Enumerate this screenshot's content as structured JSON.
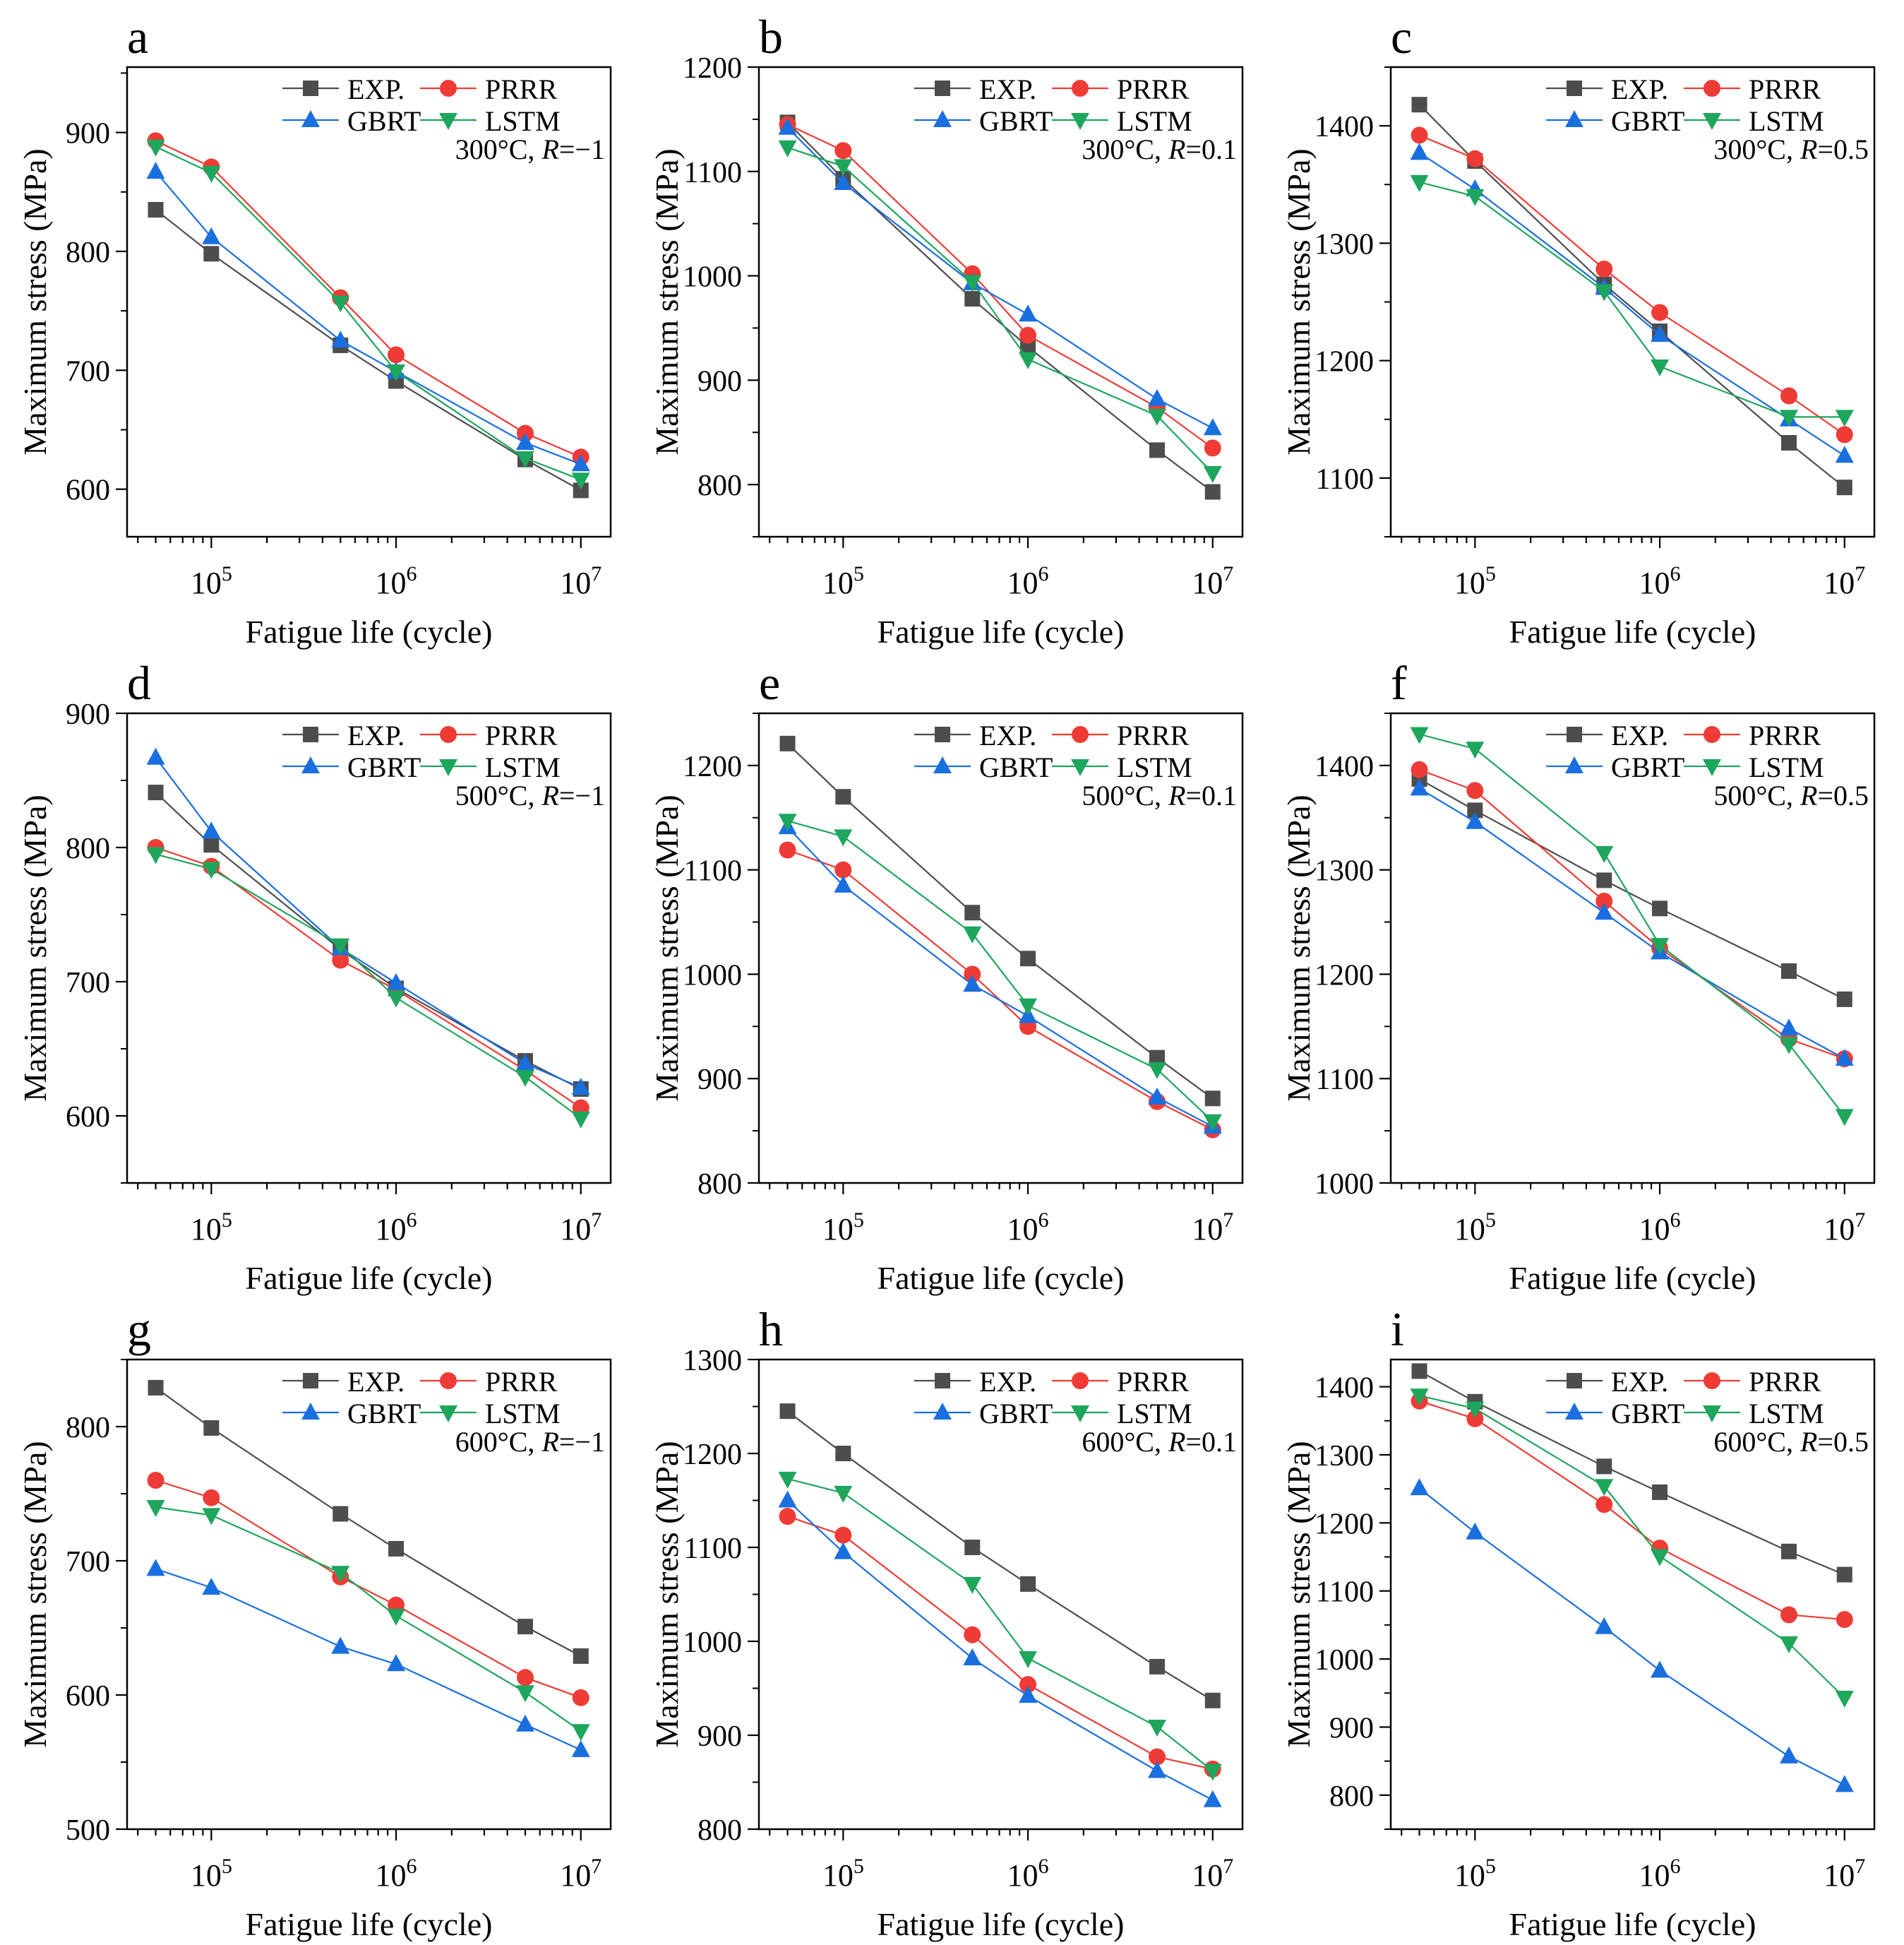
{
  "figure": {
    "x_ticks": [
      50000,
      100000,
      500000,
      1000000,
      5000000,
      10000000
    ],
    "series_names": [
      "EXP.",
      "PRRR",
      "GBRT",
      "LSTM"
    ]
  },
  "colors": {
    "EXP.": "#4d4d4d",
    "PRRR": "#ef3b36",
    "GBRT": "#1a6fdf",
    "LSTM": "#1ea65c"
  },
  "chart_data": [
    {
      "type": "line",
      "panel": "a",
      "title": "300°C, R=−1",
      "xlabel": "Fatigue life (cycle)",
      "ylabel": "Maximum stress (MPa)",
      "xscale": "log",
      "xlim": [
        35000,
        14500000
      ],
      "ylim": [
        560,
        955
      ],
      "yticks": [
        600,
        700,
        800,
        900
      ],
      "x": [
        50000,
        100000,
        500000,
        1000000,
        5000000,
        10000000
      ],
      "series": [
        {
          "name": "EXP.",
          "values": [
            835,
            798,
            721,
            691,
            625,
            599
          ]
        },
        {
          "name": "PRRR",
          "values": [
            893,
            871,
            761,
            713,
            647,
            627
          ]
        },
        {
          "name": "GBRT",
          "values": [
            867,
            812,
            725,
            699,
            639,
            621
          ]
        },
        {
          "name": "LSTM",
          "values": [
            888,
            866,
            757,
            699,
            626,
            608
          ]
        }
      ]
    },
    {
      "type": "line",
      "panel": "b",
      "title": "300°C, R=0.1",
      "xlabel": "Fatigue life (cycle)",
      "ylabel": "Maximum stress (MPa)",
      "xscale": "log",
      "xlim": [
        35000,
        14500000
      ],
      "ylim": [
        750,
        1200
      ],
      "yticks": [
        800,
        900,
        1000,
        1100,
        1200
      ],
      "x": [
        50000,
        100000,
        500000,
        1000000,
        5000000,
        10000000
      ],
      "series": [
        {
          "name": "EXP.",
          "values": [
            1147,
            1093,
            978,
            932,
            833,
            793
          ]
        },
        {
          "name": "PRRR",
          "values": [
            1145,
            1120,
            1002,
            943,
            874,
            835
          ]
        },
        {
          "name": "GBRT",
          "values": [
            1142,
            1089,
            993,
            963,
            882,
            854
          ]
        },
        {
          "name": "LSTM",
          "values": [
            1123,
            1105,
            994,
            920,
            866,
            811
          ]
        }
      ]
    },
    {
      "type": "line",
      "panel": "c",
      "title": "300°C, R=0.5",
      "xlabel": "Fatigue life (cycle)",
      "ylabel": "Maximum stress (MPa)",
      "xscale": "log",
      "xlim": [
        35000,
        14500000
      ],
      "ylim": [
        1050,
        1450
      ],
      "yticks": [
        1100,
        1200,
        1300,
        1400
      ],
      "x": [
        50000,
        100000,
        500000,
        1000000,
        5000000,
        10000000
      ],
      "series": [
        {
          "name": "EXP.",
          "values": [
            1418,
            1370,
            1265,
            1225,
            1130,
            1092
          ]
        },
        {
          "name": "PRRR",
          "values": [
            1392,
            1372,
            1278,
            1241,
            1170,
            1137
          ]
        },
        {
          "name": "GBRT",
          "values": [
            1377,
            1346,
            1262,
            1222,
            1150,
            1119
          ]
        },
        {
          "name": "LSTM",
          "values": [
            1352,
            1340,
            1259,
            1195,
            1152,
            1152
          ]
        }
      ]
    },
    {
      "type": "line",
      "panel": "d",
      "title": "500°C, R=−1",
      "xlabel": "Fatigue life (cycle)",
      "ylabel": "Maximum stress (MPa)",
      "xscale": "log",
      "xlim": [
        35000,
        14500000
      ],
      "ylim": [
        550,
        900
      ],
      "yticks": [
        600,
        700,
        800,
        900
      ],
      "x": [
        50000,
        100000,
        500000,
        1000000,
        5000000,
        10000000
      ],
      "series": [
        {
          "name": "EXP.",
          "values": [
            841,
            802,
            724,
            695,
            641,
            620
          ]
        },
        {
          "name": "PRRR",
          "values": [
            800,
            786,
            716,
            694,
            634,
            606
          ]
        },
        {
          "name": "GBRT",
          "values": [
            867,
            812,
            725,
            699,
            639,
            621
          ]
        },
        {
          "name": "LSTM",
          "values": [
            795,
            784,
            727,
            688,
            629,
            598
          ]
        }
      ]
    },
    {
      "type": "line",
      "panel": "e",
      "title": "500°C, R=0.1",
      "xlabel": "Fatigue life (cycle)",
      "ylabel": "Maximum stress (MPa)",
      "xscale": "log",
      "xlim": [
        35000,
        14500000
      ],
      "ylim": [
        800,
        1250
      ],
      "yticks": [
        800,
        900,
        1000,
        1100,
        1200
      ],
      "x": [
        50000,
        100000,
        500000,
        1000000,
        5000000,
        10000000
      ],
      "series": [
        {
          "name": "EXP.",
          "values": [
            1221,
            1170,
            1059,
            1015,
            920,
            881
          ]
        },
        {
          "name": "PRRR",
          "values": [
            1119,
            1100,
            1000,
            950,
            878,
            851
          ]
        },
        {
          "name": "GBRT",
          "values": [
            1141,
            1085,
            990,
            960,
            882,
            854
          ]
        },
        {
          "name": "LSTM",
          "values": [
            1147,
            1132,
            1039,
            970,
            909,
            859
          ]
        }
      ]
    },
    {
      "type": "line",
      "panel": "f",
      "title": "500°C, R=0.5",
      "xlabel": "Fatigue life (cycle)",
      "ylabel": "Maximum stress (MPa)",
      "xscale": "log",
      "xlim": [
        35000,
        14500000
      ],
      "ylim": [
        1000,
        1450
      ],
      "yticks": [
        1000,
        1100,
        1200,
        1300,
        1400
      ],
      "x": [
        50000,
        100000,
        500000,
        1000000,
        5000000,
        10000000
      ],
      "series": [
        {
          "name": "EXP.",
          "values": [
            1387,
            1357,
            1290,
            1263,
            1203,
            1176
          ]
        },
        {
          "name": "PRRR",
          "values": [
            1396,
            1376,
            1270,
            1225,
            1138,
            1119
          ]
        },
        {
          "name": "GBRT",
          "values": [
            1378,
            1346,
            1259,
            1221,
            1148,
            1119
          ]
        },
        {
          "name": "LSTM",
          "values": [
            1430,
            1416,
            1316,
            1228,
            1133,
            1064
          ]
        }
      ]
    },
    {
      "type": "line",
      "panel": "g",
      "title": "600°C, R=−1",
      "xlabel": "Fatigue life (cycle)",
      "ylabel": "Maximum stress (MPa)",
      "xscale": "log",
      "xlim": [
        35000,
        14500000
      ],
      "ylim": [
        500,
        850
      ],
      "yticks": [
        500,
        600,
        700,
        800
      ],
      "x": [
        50000,
        100000,
        500000,
        1000000,
        5000000,
        10000000
      ],
      "series": [
        {
          "name": "EXP.",
          "values": [
            829,
            799,
            735,
            709,
            651,
            629
          ]
        },
        {
          "name": "PRRR",
          "values": [
            760,
            747,
            688,
            667,
            613,
            598
          ]
        },
        {
          "name": "GBRT",
          "values": [
            694,
            680,
            636,
            623,
            578,
            559
          ]
        },
        {
          "name": "LSTM",
          "values": [
            740,
            734,
            691,
            659,
            602,
            573
          ]
        }
      ]
    },
    {
      "type": "line",
      "panel": "h",
      "title": "600°C, R=0.1",
      "xlabel": "Fatigue life (cycle)",
      "ylabel": "Maximum stress (MPa)",
      "xscale": "log",
      "xlim": [
        35000,
        14500000
      ],
      "ylim": [
        800,
        1300
      ],
      "yticks": [
        800,
        900,
        1000,
        1100,
        1200,
        1300
      ],
      "x": [
        50000,
        100000,
        500000,
        1000000,
        5000000,
        10000000
      ],
      "series": [
        {
          "name": "EXP.",
          "values": [
            1245,
            1200,
            1100,
            1061,
            973,
            937
          ]
        },
        {
          "name": "PRRR",
          "values": [
            1133,
            1113,
            1007,
            954,
            877,
            864
          ]
        },
        {
          "name": "GBRT",
          "values": [
            1150,
            1095,
            982,
            942,
            862,
            831
          ]
        },
        {
          "name": "LSTM",
          "values": [
            1173,
            1158,
            1061,
            982,
            909,
            862
          ]
        }
      ]
    },
    {
      "type": "line",
      "panel": "i",
      "title": "600°C, R=0.5",
      "xlabel": "Fatigue life (cycle)",
      "ylabel": "Maximum stress (MPa)",
      "xscale": "log",
      "xlim": [
        35000,
        14500000
      ],
      "ylim": [
        750,
        1440
      ],
      "yticks": [
        800,
        900,
        1000,
        1100,
        1200,
        1300,
        1400
      ],
      "x": [
        50000,
        100000,
        500000,
        1000000,
        5000000,
        10000000
      ],
      "series": [
        {
          "name": "EXP.",
          "values": [
            1423,
            1378,
            1283,
            1245,
            1158,
            1124
          ]
        },
        {
          "name": "PRRR",
          "values": [
            1379,
            1353,
            1227,
            1163,
            1065,
            1058
          ]
        },
        {
          "name": "GBRT",
          "values": [
            1251,
            1186,
            1047,
            983,
            857,
            815
          ]
        },
        {
          "name": "LSTM",
          "values": [
            1387,
            1368,
            1254,
            1151,
            1023,
            943
          ]
        }
      ]
    }
  ]
}
